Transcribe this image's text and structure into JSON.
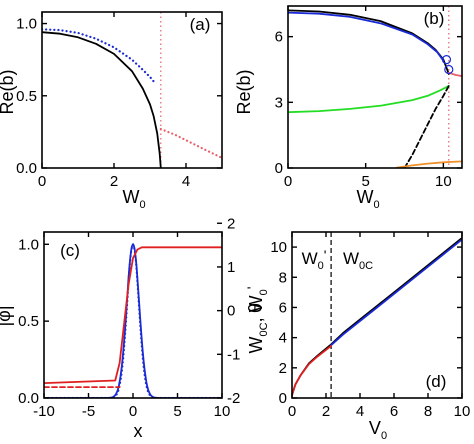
{
  "chart_data": [
    {
      "panel": "(a)",
      "type": "line",
      "xlabel_main": "W",
      "xlabel_sub": "0",
      "ylabel": "Re(b)",
      "xlim": [
        0,
        5
      ],
      "ylim": [
        0,
        1.08
      ],
      "xticks": [
        0,
        2,
        4
      ],
      "yticks": [
        0.0,
        0.5,
        1.0
      ],
      "grid": false,
      "vlines": [
        {
          "x": 3.3,
          "color": "#e8606a",
          "style": "dotted"
        }
      ],
      "series": [
        {
          "color": "#000000",
          "style": "solid",
          "points": [
            [
              0,
              0.94
            ],
            [
              0.5,
              0.93
            ],
            [
              1,
              0.905
            ],
            [
              1.5,
              0.86
            ],
            [
              2,
              0.79
            ],
            [
              2.5,
              0.67
            ],
            [
              2.8,
              0.55
            ],
            [
              3.0,
              0.44
            ],
            [
              3.1,
              0.36
            ],
            [
              3.2,
              0.24
            ],
            [
              3.27,
              0.1
            ],
            [
              3.3,
              0.0
            ]
          ]
        },
        {
          "color": "#1a2bd6",
          "style": "dotted",
          "points": [
            [
              0,
              0.96
            ],
            [
              0.5,
              0.955
            ],
            [
              1,
              0.935
            ],
            [
              1.5,
              0.895
            ],
            [
              2,
              0.835
            ],
            [
              2.5,
              0.75
            ],
            [
              2.8,
              0.68
            ],
            [
              3.0,
              0.63
            ],
            [
              3.1,
              0.6
            ]
          ]
        },
        {
          "color": "#e8606a",
          "style": "dotted",
          "points": [
            [
              3.3,
              0.27
            ],
            [
              3.7,
              0.23
            ],
            [
              4.1,
              0.18
            ],
            [
              4.5,
              0.13
            ],
            [
              5.0,
              0.07
            ]
          ]
        }
      ]
    },
    {
      "panel": "(b)",
      "type": "line",
      "xlabel_main": "W",
      "xlabel_sub": "0",
      "ylabel": "Re(b)",
      "xlim": [
        0,
        11.2
      ],
      "ylim": [
        0,
        7.4
      ],
      "xticks": [
        0,
        5,
        10
      ],
      "yticks": [
        0,
        3,
        6
      ],
      "grid": false,
      "vlines": [
        {
          "x": 10.35,
          "color": "#e8606a",
          "style": "dotted"
        }
      ],
      "markers": [
        [
          10.2,
          4.95
        ],
        [
          10.35,
          4.5
        ]
      ],
      "series": [
        {
          "color": "#000000",
          "style": "solid",
          "points": [
            [
              0,
              7.2
            ],
            [
              2,
              7.15
            ],
            [
              4,
              7.0
            ],
            [
              6,
              6.7
            ],
            [
              8,
              6.15
            ],
            [
              9,
              5.7
            ],
            [
              9.5,
              5.4
            ],
            [
              10,
              4.95
            ],
            [
              10.35,
              4.3
            ]
          ]
        },
        {
          "color": "#1a2bd6",
          "style": "solid",
          "points": [
            [
              0,
              7.1
            ],
            [
              2,
              7.05
            ],
            [
              4,
              6.9
            ],
            [
              6,
              6.6
            ],
            [
              8,
              6.1
            ],
            [
              9,
              5.65
            ],
            [
              9.6,
              5.3
            ],
            [
              10,
              4.9
            ]
          ]
        },
        {
          "color": "#22dd22",
          "style": "solid",
          "points": [
            [
              0,
              2.55
            ],
            [
              2,
              2.6
            ],
            [
              4,
              2.7
            ],
            [
              6,
              2.85
            ],
            [
              8,
              3.1
            ],
            [
              9,
              3.3
            ],
            [
              9.8,
              3.55
            ],
            [
              10.35,
              3.75
            ]
          ]
        },
        {
          "color": "#000000",
          "style": "dashed",
          "points": [
            [
              7.5,
              0.0
            ],
            [
              8.0,
              0.6
            ],
            [
              8.5,
              1.3
            ],
            [
              9.0,
              2.0
            ],
            [
              9.5,
              2.7
            ],
            [
              10.0,
              3.3
            ],
            [
              10.35,
              3.75
            ]
          ]
        },
        {
          "color": "#f0902a",
          "style": "solid",
          "points": [
            [
              7.0,
              0.02
            ],
            [
              8,
              0.12
            ],
            [
              9,
              0.2
            ],
            [
              10,
              0.26
            ],
            [
              11.2,
              0.3
            ]
          ]
        },
        {
          "color": "#e8606a",
          "style": "solid",
          "points": [
            [
              10.35,
              4.35
            ],
            [
              10.8,
              4.25
            ],
            [
              11.2,
              4.2
            ]
          ]
        }
      ]
    },
    {
      "panel": "(c)",
      "type": "line",
      "xlabel": "x",
      "ylabel_left": "|φ|",
      "ylabel_right": "θ",
      "xlim": [
        -10,
        10
      ],
      "ylim_left": [
        0,
        1.08
      ],
      "ylim_right": [
        -2.0,
        1.8
      ],
      "xticks": [
        -10,
        -5,
        0,
        5,
        10
      ],
      "yticks_left": [
        0.0,
        0.5,
        1.0
      ],
      "yticks_right": [
        -2,
        -1,
        0,
        1,
        2
      ],
      "grid": false,
      "series": [
        {
          "axis": "left",
          "color": "#1a2bd6",
          "style": "solid",
          "gaussian_width": 1.0,
          "points": [
            [
              -10,
              0
            ],
            [
              -3,
              0
            ],
            [
              -2,
              0.02
            ],
            [
              -1.5,
              0.1
            ],
            [
              -1,
              0.37
            ],
            [
              -0.5,
              0.78
            ],
            [
              0,
              1.0
            ],
            [
              0.5,
              0.78
            ],
            [
              1,
              0.37
            ],
            [
              1.5,
              0.1
            ],
            [
              2,
              0.02
            ],
            [
              3,
              0
            ],
            [
              10,
              0
            ]
          ]
        },
        {
          "axis": "left",
          "color": "#1a2bd6",
          "style": "dotted",
          "gaussian_width": 0.95,
          "points": [
            [
              -10,
              0
            ],
            [
              -3,
              0
            ],
            [
              -2,
              0.01
            ],
            [
              -1.5,
              0.08
            ],
            [
              -1,
              0.33
            ],
            [
              -0.5,
              0.76
            ],
            [
              0,
              1.0
            ],
            [
              0.5,
              0.76
            ],
            [
              1,
              0.33
            ],
            [
              1.5,
              0.08
            ],
            [
              2,
              0.01
            ],
            [
              3,
              0
            ],
            [
              10,
              0
            ]
          ]
        },
        {
          "axis": "right",
          "color": "#e02020",
          "style": "solid",
          "points": [
            [
              -10,
              -1.66
            ],
            [
              -2,
              -1.6
            ],
            [
              -1.5,
              -1.2
            ],
            [
              -1,
              -0.3
            ],
            [
              -0.5,
              0.6
            ],
            [
              0,
              1.2
            ],
            [
              0.5,
              1.4
            ],
            [
              1,
              1.45
            ],
            [
              10,
              1.45
            ]
          ]
        },
        {
          "axis": "right",
          "color": "#e02020",
          "style": "dashed",
          "points": [
            [
              -10,
              -1.75
            ],
            [
              -1.5,
              -1.75
            ]
          ]
        }
      ]
    },
    {
      "panel": "(d)",
      "type": "line",
      "xlabel_main": "V",
      "xlabel_sub": "0",
      "ylabel_main": "W",
      "ylabel_sub": "0C",
      "ylabel_mid": ", W",
      "ylabel_sub2": "0",
      "ylabel_tail": "'",
      "xlim": [
        0,
        10
      ],
      "ylim": [
        0,
        11
      ],
      "xticks": [
        0,
        2,
        4,
        6,
        8,
        10
      ],
      "yticks": [
        0,
        2,
        4,
        6,
        8,
        10
      ],
      "grid": false,
      "vlines": [
        {
          "x": 2.3,
          "color": "#000000",
          "style": "dashed"
        }
      ],
      "region_label_left_main": "W",
      "region_label_left_sub": "0",
      "region_label_left_tail": "'",
      "region_label_right_main": "W",
      "region_label_right_sub": "0C",
      "series": [
        {
          "color": "#000000",
          "style": "solid",
          "points": [
            [
              0,
              0.2
            ],
            [
              0.2,
              0.9
            ],
            [
              0.5,
              1.5
            ],
            [
              1,
              2.3
            ],
            [
              1.5,
              2.8
            ],
            [
              2.3,
              3.55
            ],
            [
              3,
              4.3
            ],
            [
              4,
              5.2
            ],
            [
              5,
              6.1
            ],
            [
              6,
              7.0
            ],
            [
              7,
              7.9
            ],
            [
              8,
              8.8
            ],
            [
              9,
              9.7
            ],
            [
              10,
              10.6
            ]
          ]
        },
        {
          "color": "#1a2bd6",
          "style": "solid",
          "points": [
            [
              2.3,
              3.5
            ],
            [
              3,
              4.2
            ],
            [
              4,
              5.1
            ],
            [
              5,
              6.0
            ],
            [
              6,
              6.9
            ],
            [
              7,
              7.8
            ],
            [
              8,
              8.7
            ],
            [
              9,
              9.6
            ],
            [
              10,
              10.5
            ]
          ]
        },
        {
          "color": "#e02020",
          "style": "solid",
          "points": [
            [
              0,
              0.2
            ],
            [
              0.2,
              0.9
            ],
            [
              0.5,
              1.5
            ],
            [
              1,
              2.25
            ],
            [
              1.5,
              2.75
            ],
            [
              2.3,
              3.45
            ]
          ]
        }
      ]
    }
  ]
}
